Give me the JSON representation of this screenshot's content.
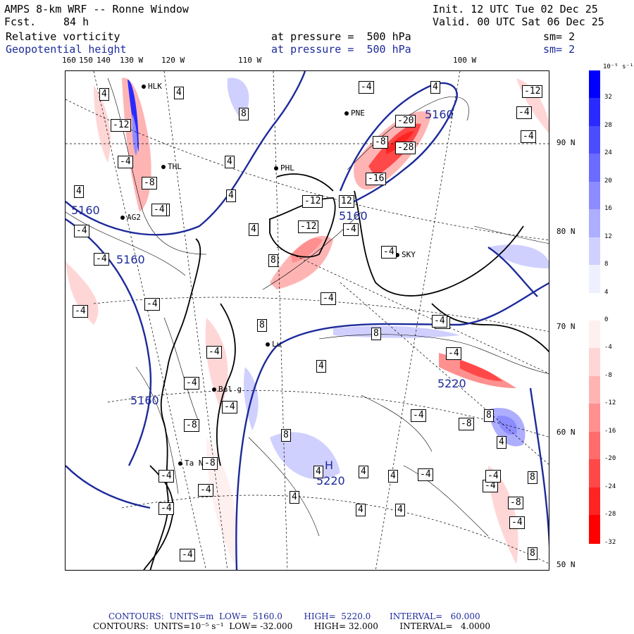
{
  "header": {
    "model": "AMPS 8-km WRF -- Ronne Window",
    "fcst_label": "Fcst.",
    "fcst_value": "84 h",
    "init": "Init. 12 UTC Tue 02 Dec 25",
    "valid": "Valid. 00 UTC Sat 06 Dec 25",
    "field1": "Relative vorticity",
    "field1_level": "at pressure =  500 hPa",
    "field1_sm": "sm= 2",
    "field2": "Geopotential height",
    "field2_level": "at pressure =  500 hPa",
    "field2_sm": "sm= 2"
  },
  "lon_labels": [
    "160",
    "150",
    "140",
    "130 W",
    "120 W",
    "110 W",
    "100 W"
  ],
  "lat_labels": [
    "90 N",
    "80 N",
    "70 N",
    "60 N",
    "50 N"
  ],
  "colorbar": {
    "unit": "10⁻⁵ s⁻¹",
    "ticks": [
      "32",
      "28",
      "24",
      "20",
      "16",
      "12",
      "8",
      "4",
      "0",
      "-4",
      "-8",
      "-12",
      "-16",
      "-20",
      "-24",
      "-28",
      "-32"
    ],
    "colors": [
      "#0000ff",
      "#2a2aff",
      "#4c4cff",
      "#6b6bff",
      "#8c8cff",
      "#aeaeff",
      "#d0d0ff",
      "#eef0ff",
      "#ffffff",
      "#fff0f0",
      "#ffd6d6",
      "#ffb4b4",
      "#ff9090",
      "#ff6c6c",
      "#ff4848",
      "#ff2424",
      "#ff0000"
    ]
  },
  "stations": [
    "HLK",
    "THL",
    "AG2",
    "PNE",
    "PHL",
    "SKY",
    "Bel g",
    "Lu",
    "Ta Nev"
  ],
  "height_labels": [
    "5160",
    "5160",
    "5160",
    "5160",
    "5160",
    "5220",
    "H",
    "5220"
  ],
  "vort_labels": [
    "4",
    "4",
    "-12",
    "-4",
    "-8",
    "-4",
    "4",
    "4",
    "4",
    "-4",
    "8",
    "-4",
    "4",
    "-20",
    "-28",
    "-16",
    "-12",
    "-8",
    "-4",
    "12",
    "-12",
    "-4",
    "8",
    "-12",
    "-4",
    "-4",
    "-4",
    "-4",
    "-4",
    "-4",
    "8",
    "-4",
    "-4",
    "4",
    "-4",
    "8",
    "-4",
    "-8",
    "-8",
    "-4",
    "4",
    "8",
    "4",
    "4",
    "4",
    "-4",
    "-4",
    "-4",
    "8",
    "-8",
    "-4",
    "8",
    "4",
    "-4",
    "4",
    "-4",
    "-4",
    "-8",
    "-4",
    "-4",
    "-4",
    "8",
    "4",
    "4",
    "4",
    "-4",
    "8"
  ],
  "footer": {
    "line1": "CONTOURS:  UNITS=m  LOW=  5160.0        HIGH=  5220.0       INTERVAL=   60.000",
    "line2": "CONTOURS:  UNITS=10⁻⁵ s⁻¹  LOW= -32.000        HIGH= 32.000        INTERVAL=   4.0000"
  }
}
